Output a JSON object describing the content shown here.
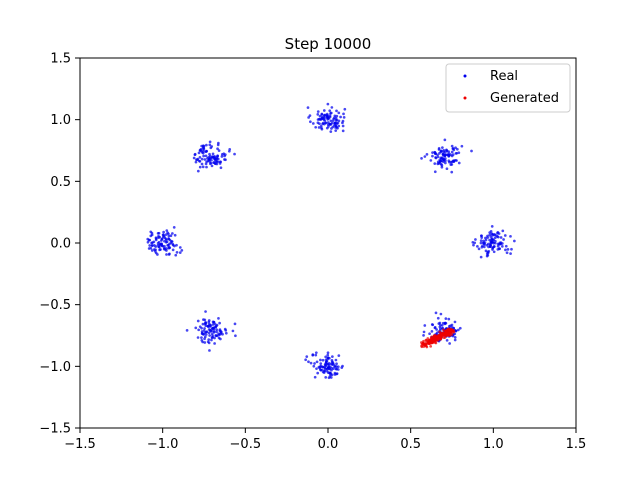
{
  "chart_data": {
    "type": "scatter",
    "title": "Step 10000",
    "xlabel": "",
    "ylabel": "",
    "xlim": [
      -1.5,
      1.5
    ],
    "ylim": [
      -1.5,
      1.5
    ],
    "grid": false,
    "legend_position": "top-right",
    "x_ticks": [
      -1.5,
      -1.0,
      -0.5,
      0.0,
      0.5,
      1.0,
      1.5
    ],
    "x_tick_labels": [
      "−1.5",
      "−1.0",
      "−0.5",
      "0.0",
      "0.5",
      "1.0",
      "1.5"
    ],
    "y_ticks": [
      1.5,
      1.0,
      0.5,
      0.0,
      -0.5,
      -1.0,
      -1.5
    ],
    "y_tick_labels": [
      "1.5",
      "1.0",
      "0.5",
      "0.0",
      "−0.5",
      "−1.0",
      "−1.5"
    ],
    "series": [
      {
        "name": "Real",
        "color": "#0000ee",
        "distribution": "mixture of 8 Gaussians on a circle, radius 1.0, std approx 0.05, about 100 points per mode",
        "mode_centers": [
          [
            0.0,
            1.0
          ],
          [
            0.707,
            0.707
          ],
          [
            1.0,
            0.0
          ],
          [
            0.707,
            -0.707
          ],
          [
            0.0,
            -1.0
          ],
          [
            -0.707,
            -0.707
          ],
          [
            -1.0,
            0.0
          ],
          [
            -0.707,
            0.707
          ]
        ],
        "std": 0.05,
        "points_per_mode": 100
      },
      {
        "name": "Generated",
        "color": "#ee0000",
        "distribution": "collapsed onto one short line segment near (0.7, -0.75)",
        "segment_start": [
          0.57,
          -0.83
        ],
        "segment_end": [
          0.75,
          -0.71
        ],
        "spread": 0.012,
        "num_points": 220
      }
    ]
  }
}
